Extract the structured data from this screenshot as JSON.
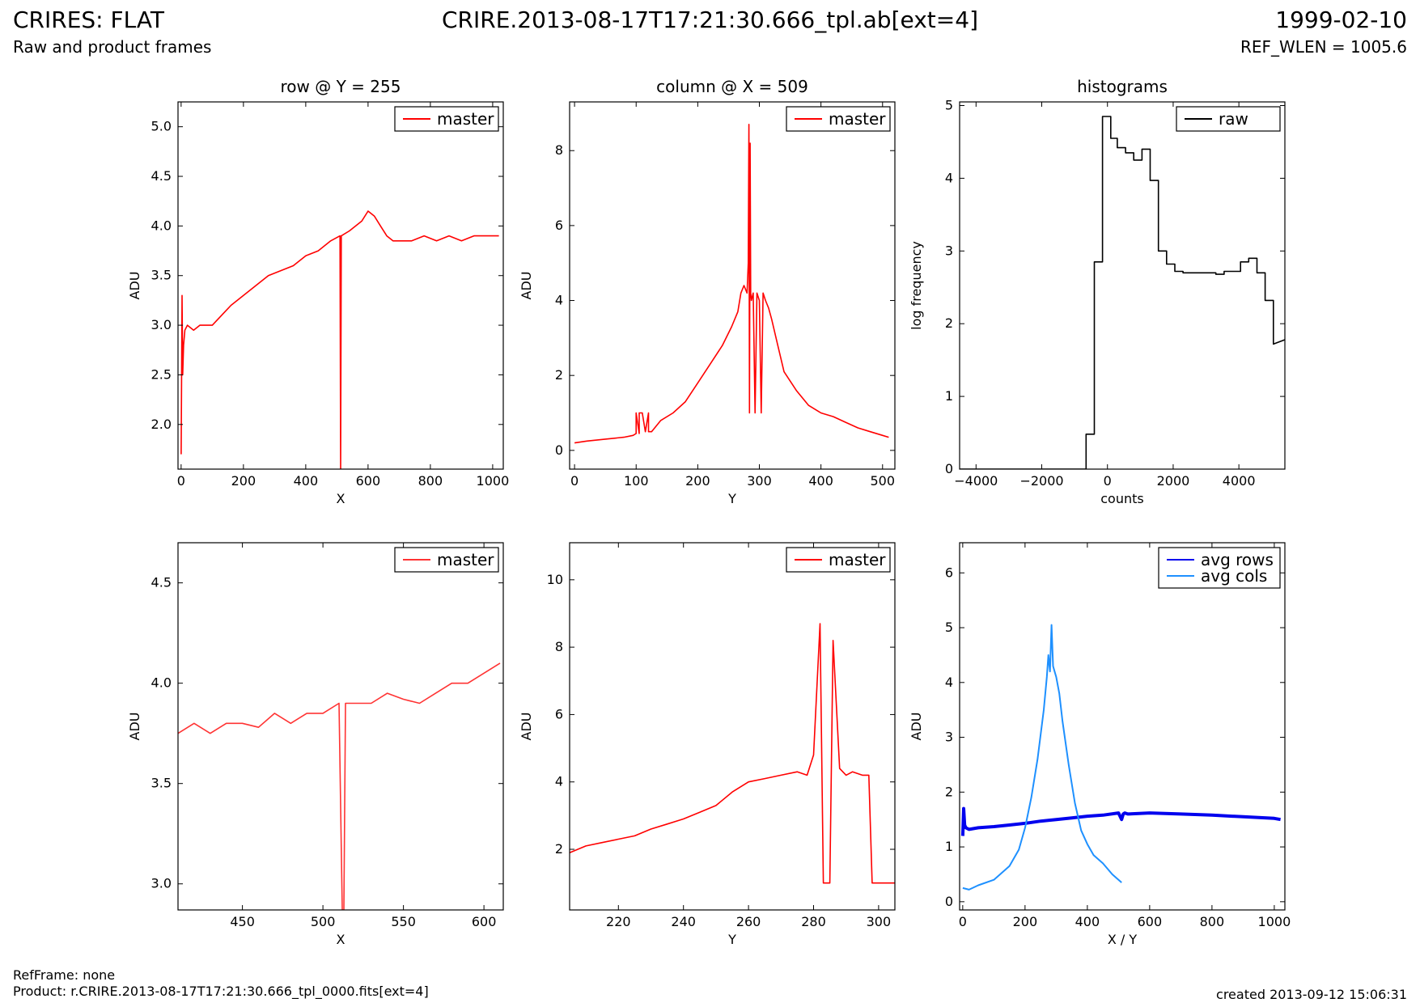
{
  "header": {
    "title": "CRIRES: FLAT",
    "subtitle": "Raw and product frames",
    "file": "CRIRE.2013-08-17T17:21:30.666_tpl.ab[ext=4]",
    "date": "1999-02-10",
    "ref_wlen": "REF_WLEN = 1005.6"
  },
  "footer": {
    "refframe": "RefFrame: none",
    "product": "Product: r.CRIRE.2013-08-17T17:21:30.666_tpl_0000.fits[ext=4]",
    "created": "created 2013-09-12 15:06:31"
  },
  "colors": {
    "master": "#ff0000",
    "master_zoom": "#ff3333",
    "raw": "#000000",
    "avg_rows": "#0000ee",
    "avg_cols": "#1e90ff"
  },
  "chart_data": [
    {
      "type": "line",
      "title": "row @ Y = 255",
      "xlabel": "X",
      "ylabel": "ADU",
      "xlim": [
        -10,
        1034
      ],
      "ylim": [
        1.55,
        5.25
      ],
      "xticks": [
        "0",
        "200",
        "400",
        "600",
        "800",
        "1000"
      ],
      "yticks": [
        "2.0",
        "2.5",
        "3.0",
        "3.5",
        "4.0",
        "4.5",
        "5.0"
      ],
      "legend": "top-right",
      "series": [
        {
          "name": "master",
          "color": "#ff0000",
          "x": [
            0,
            3,
            5,
            8,
            12,
            20,
            40,
            60,
            80,
            100,
            130,
            160,
            200,
            240,
            280,
            320,
            360,
            400,
            440,
            480,
            510,
            512,
            514,
            540,
            560,
            580,
            600,
            620,
            640,
            660,
            680,
            700,
            740,
            780,
            820,
            860,
            900,
            940,
            980,
            1000,
            1020
          ],
          "y": [
            1.7,
            3.3,
            2.5,
            2.8,
            2.95,
            3.0,
            2.95,
            3.0,
            3.0,
            3.0,
            3.1,
            3.2,
            3.3,
            3.4,
            3.5,
            3.55,
            3.6,
            3.7,
            3.75,
            3.85,
            3.9,
            1.55,
            3.9,
            3.95,
            4.0,
            4.05,
            4.15,
            4.1,
            4.0,
            3.9,
            3.85,
            3.85,
            3.85,
            3.9,
            3.85,
            3.9,
            3.85,
            3.9,
            3.9,
            3.9,
            3.9
          ]
        }
      ]
    },
    {
      "type": "line",
      "title": "column @ X = 509",
      "xlabel": "Y",
      "ylabel": "ADU",
      "xlim": [
        -8,
        520
      ],
      "ylim": [
        -0.5,
        9.3
      ],
      "xticks": [
        "0",
        "100",
        "200",
        "300",
        "400",
        "500"
      ],
      "yticks": [
        "0",
        "2",
        "4",
        "6",
        "8"
      ],
      "legend": "top-right",
      "series": [
        {
          "name": "master",
          "color": "#ff0000",
          "x": [
            0,
            20,
            50,
            80,
            95,
            100,
            100,
            105,
            105,
            110,
            115,
            120,
            120,
            125,
            140,
            160,
            180,
            200,
            220,
            240,
            255,
            265,
            270,
            275,
            280,
            282,
            283,
            284,
            285,
            286,
            287,
            290,
            293,
            296,
            300,
            303,
            306,
            310,
            315,
            320,
            330,
            340,
            360,
            380,
            400,
            420,
            440,
            460,
            480,
            500,
            510
          ],
          "y": [
            0.2,
            0.25,
            0.3,
            0.35,
            0.4,
            0.45,
            1.0,
            0.45,
            1.0,
            1.0,
            0.5,
            1.0,
            0.5,
            0.5,
            0.8,
            1.0,
            1.3,
            1.8,
            2.3,
            2.8,
            3.3,
            3.7,
            4.2,
            4.4,
            4.2,
            5.0,
            8.7,
            1.0,
            8.2,
            4.2,
            4.0,
            4.2,
            1.0,
            4.2,
            4.0,
            1.0,
            4.2,
            4.0,
            3.8,
            3.5,
            2.8,
            2.1,
            1.6,
            1.2,
            1.0,
            0.9,
            0.75,
            0.6,
            0.5,
            0.4,
            0.35
          ]
        }
      ]
    },
    {
      "type": "line",
      "title": "histograms",
      "xlabel": "counts",
      "ylabel": "log frequency",
      "xlim": [
        -4500,
        5400
      ],
      "ylim": [
        0,
        5.05
      ],
      "xticks": [
        "−4000",
        "−2000",
        "0",
        "2000",
        "4000"
      ],
      "yticks": [
        "0",
        "1",
        "2",
        "3",
        "4",
        "5"
      ],
      "legend": "top-right",
      "series": [
        {
          "name": "raw",
          "color": "#000000",
          "step": true,
          "x": [
            -4500,
            -650,
            -650,
            -400,
            -400,
            -150,
            -150,
            100,
            100,
            300,
            300,
            550,
            550,
            800,
            800,
            1050,
            1050,
            1300,
            1300,
            1550,
            1550,
            1800,
            1800,
            2050,
            2050,
            2300,
            2300,
            3300,
            3300,
            3550,
            3550,
            3800,
            3800,
            4050,
            4050,
            4300,
            4300,
            4550,
            4550,
            4800,
            4800,
            5050,
            5050,
            5400
          ],
          "y": [
            0,
            0,
            0.48,
            0.48,
            2.85,
            2.85,
            4.85,
            4.85,
            4.55,
            4.55,
            4.42,
            4.42,
            4.35,
            4.35,
            4.25,
            4.25,
            4.4,
            4.4,
            3.97,
            3.97,
            3.0,
            3.0,
            2.82,
            2.82,
            2.72,
            2.72,
            2.7,
            2.7,
            2.68,
            2.68,
            2.72,
            2.72,
            2.72,
            2.72,
            2.85,
            2.85,
            2.9,
            2.9,
            2.7,
            2.7,
            2.32,
            2.32,
            1.72,
            1.78
          ]
        }
      ]
    },
    {
      "type": "line",
      "title": "",
      "xlabel": "X",
      "ylabel": "ADU",
      "xlim": [
        410,
        612
      ],
      "ylim": [
        2.87,
        4.7
      ],
      "xticks": [
        "450",
        "500",
        "550",
        "600"
      ],
      "yticks": [
        "3.0",
        "3.5",
        "4.0",
        "4.5"
      ],
      "legend": "top-right",
      "series": [
        {
          "name": "master",
          "color": "#ff3333",
          "x": [
            410,
            420,
            430,
            440,
            450,
            460,
            470,
            480,
            490,
            500,
            510,
            512,
            513,
            514,
            520,
            530,
            540,
            550,
            560,
            570,
            580,
            590,
            600,
            610
          ],
          "y": [
            3.75,
            3.8,
            3.75,
            3.8,
            3.8,
            3.78,
            3.85,
            3.8,
            3.85,
            3.85,
            3.9,
            2.87,
            2.87,
            3.9,
            3.9,
            3.9,
            3.95,
            3.92,
            3.9,
            3.95,
            4.0,
            4.0,
            4.05,
            4.1
          ]
        }
      ]
    },
    {
      "type": "line",
      "title": "",
      "xlabel": "Y",
      "ylabel": "ADU",
      "xlim": [
        205,
        305
      ],
      "ylim": [
        0.2,
        11.1
      ],
      "xticks": [
        "220",
        "240",
        "260",
        "280",
        "300"
      ],
      "yticks": [
        "2",
        "4",
        "6",
        "8",
        "10"
      ],
      "legend": "top-right",
      "series": [
        {
          "name": "master",
          "color": "#ff0000",
          "step": true,
          "x": [
            205,
            210,
            215,
            220,
            225,
            230,
            235,
            240,
            245,
            250,
            255,
            260,
            265,
            270,
            275,
            278,
            280,
            282,
            283,
            285,
            286,
            288,
            290,
            292,
            295,
            297,
            298,
            305
          ],
          "y": [
            1.9,
            2.1,
            2.2,
            2.3,
            2.4,
            2.6,
            2.75,
            2.9,
            3.1,
            3.3,
            3.7,
            4.0,
            4.1,
            4.2,
            4.3,
            4.2,
            4.8,
            8.7,
            1.0,
            1.0,
            8.2,
            4.4,
            4.2,
            4.3,
            4.2,
            4.2,
            1.0,
            1.0
          ]
        }
      ]
    },
    {
      "type": "line",
      "title": "",
      "xlabel": "X / Y",
      "ylabel": "ADU",
      "xlim": [
        -10,
        1034
      ],
      "ylim": [
        -0.15,
        6.55
      ],
      "xticks": [
        "0",
        "200",
        "400",
        "600",
        "800",
        "1000"
      ],
      "yticks": [
        "0",
        "1",
        "2",
        "3",
        "4",
        "5",
        "6"
      ],
      "legend": "top-right",
      "series": [
        {
          "name": "avg rows",
          "color": "#0000ee",
          "width": 4,
          "x": [
            0,
            3,
            6,
            10,
            20,
            50,
            100,
            150,
            200,
            250,
            300,
            350,
            400,
            450,
            500,
            510,
            515,
            520,
            530,
            600,
            700,
            800,
            900,
            1000,
            1020
          ],
          "y": [
            1.2,
            1.7,
            1.4,
            1.35,
            1.32,
            1.35,
            1.37,
            1.4,
            1.43,
            1.47,
            1.5,
            1.53,
            1.56,
            1.58,
            1.62,
            1.5,
            1.6,
            1.62,
            1.6,
            1.62,
            1.6,
            1.58,
            1.55,
            1.52,
            1.5
          ]
        },
        {
          "name": "avg cols",
          "color": "#1e90ff",
          "width": 2,
          "x": [
            0,
            20,
            50,
            100,
            150,
            180,
            200,
            220,
            240,
            260,
            270,
            275,
            280,
            285,
            290,
            295,
            300,
            310,
            320,
            340,
            360,
            380,
            400,
            420,
            450,
            480,
            510
          ],
          "y": [
            0.25,
            0.22,
            0.3,
            0.4,
            0.65,
            0.95,
            1.35,
            1.9,
            2.6,
            3.5,
            4.1,
            4.5,
            4.2,
            5.05,
            4.3,
            4.2,
            4.1,
            3.8,
            3.3,
            2.5,
            1.8,
            1.3,
            1.05,
            0.85,
            0.7,
            0.5,
            0.35
          ]
        }
      ]
    }
  ]
}
